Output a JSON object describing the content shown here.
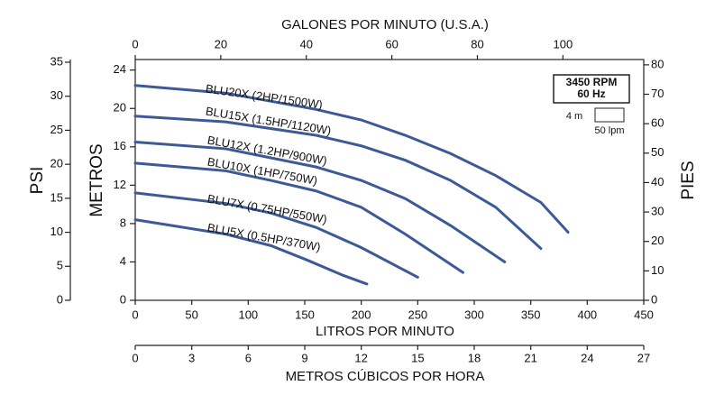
{
  "chart_data": {
    "type": "line",
    "xlabel": "LITROS POR MINUTO",
    "xlim": [
      0,
      450
    ],
    "xticks": [
      0,
      50,
      100,
      150,
      200,
      250,
      300,
      350,
      400,
      450
    ],
    "x2label": "GALONES POR MINUTO (U.S.A.)",
    "x2lim": [
      0,
      118.9
    ],
    "x2ticks": [
      0,
      20,
      40,
      60,
      80,
      100
    ],
    "x3label": "METROS CÚBICOS POR HORA",
    "x3lim": [
      0,
      27
    ],
    "x3ticks": [
      0,
      3,
      6,
      9,
      12,
      15,
      18,
      21,
      24,
      27
    ],
    "ylabel": "METROS",
    "ylim": [
      0,
      25.1
    ],
    "yticks": [
      0,
      4,
      8,
      12,
      16,
      20,
      24
    ],
    "y2label": "PIES",
    "y2lim": [
      0,
      81.8
    ],
    "y2ticks": [
      0,
      10,
      20,
      30,
      40,
      50,
      60,
      70,
      80
    ],
    "y3label": "PSI",
    "y3lim": [
      0,
      35.4
    ],
    "y3ticks": [
      0,
      5,
      10,
      15,
      20,
      25,
      30,
      35
    ],
    "legend_box": [
      "3450 RPM",
      "60 Hz"
    ],
    "scale_height": "4 m",
    "scale_flow": "50 lpm",
    "series": [
      {
        "name": "BLU20X (2HP/1500W)",
        "color": "#3d5a96",
        "x": [
          0,
          80,
          160,
          200,
          239,
          279,
          319,
          359,
          383
        ],
        "values": [
          22.4,
          21.6,
          19.9,
          18.8,
          17.2,
          15.3,
          13.0,
          10.2,
          7.1
        ]
      },
      {
        "name": "BLU15X (1.5HP/1120W)",
        "color": "#3d5a96",
        "x": [
          0,
          80,
          160,
          200,
          239,
          279,
          319,
          359
        ],
        "values": [
          19.2,
          18.6,
          17.2,
          16.1,
          14.6,
          12.5,
          9.7,
          5.4
        ]
      },
      {
        "name": "BLU12X (1.2HP/900W)",
        "color": "#3d5a96",
        "x": [
          0,
          80,
          160,
          200,
          239,
          279,
          327
        ],
        "values": [
          16.5,
          15.8,
          13.9,
          12.5,
          10.6,
          7.8,
          4.0
        ]
      },
      {
        "name": "BLU10X (1HP/750W)",
        "color": "#3d5a96",
        "x": [
          0,
          80,
          120,
          160,
          200,
          239,
          290
        ],
        "values": [
          14.3,
          13.5,
          12.5,
          11.4,
          9.7,
          6.9,
          2.9
        ]
      },
      {
        "name": "BLU7X (0.75HP/550W)",
        "color": "#3d5a96",
        "x": [
          0,
          80,
          120,
          160,
          200,
          250
        ],
        "values": [
          11.2,
          10.1,
          9.1,
          7.6,
          5.5,
          2.4
        ]
      },
      {
        "name": "BLU5X (0.5HP/370W)",
        "color": "#3d5a96",
        "x": [
          0,
          80,
          120,
          152,
          184,
          205
        ],
        "values": [
          8.4,
          6.9,
          5.7,
          4.2,
          2.6,
          1.7
        ]
      }
    ]
  }
}
